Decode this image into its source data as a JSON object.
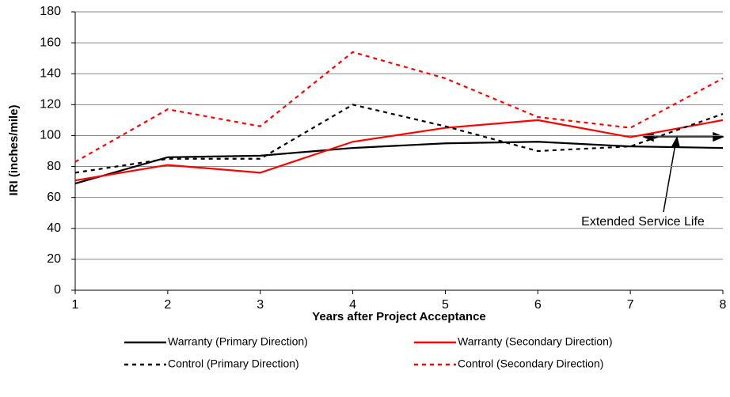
{
  "chart_data": {
    "type": "line",
    "x_label": "Years after Project Acceptance",
    "y_label": "IRI (inches/mile)",
    "x": [
      1,
      2,
      3,
      4,
      5,
      6,
      7,
      8
    ],
    "xlim": [
      1,
      8
    ],
    "xticks": [
      1,
      2,
      3,
      4,
      5,
      6,
      7,
      8
    ],
    "ylim": [
      0,
      180
    ],
    "yticks": [
      0,
      20,
      40,
      60,
      80,
      100,
      120,
      140,
      160,
      180
    ],
    "grid": true,
    "annotation": "Extended Service Life",
    "series": [
      {
        "name": "Warranty (Primary Direction)",
        "color": "#000000",
        "dash": false,
        "values": [
          69,
          86,
          87,
          92,
          95,
          96,
          93,
          92
        ]
      },
      {
        "name": "Warranty (Secondary Direction)",
        "color": "#ff0000",
        "dash": false,
        "values": [
          71,
          81,
          76,
          96,
          105,
          110,
          99,
          110
        ]
      },
      {
        "name": "Control (Primary Direction)",
        "color": "#000000",
        "dash": true,
        "values": [
          76,
          85,
          85,
          120,
          106,
          90,
          93,
          114
        ]
      },
      {
        "name": "Control (Secondary Direction)",
        "color": "#ff0000",
        "dash": true,
        "values": [
          83,
          117,
          106,
          154,
          137,
          112,
          105,
          137
        ]
      }
    ]
  }
}
